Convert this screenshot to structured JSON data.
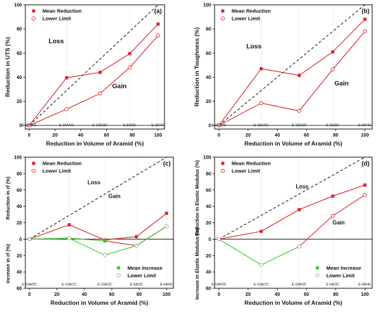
{
  "colors": {
    "mean": "#d9262b",
    "lower": "#d9262b",
    "increase": "#33cc33",
    "diagonal": "#111111",
    "axis": "#111111"
  },
  "chart_data": [
    {
      "panel": "(a)",
      "type": "line",
      "xlabel": "Reduction in Volume of Aramid (%)",
      "ylabel": "Reduction in UTS (%)",
      "xlim": [
        -3,
        105
      ],
      "ylim": [
        -3,
        100
      ],
      "x_ticks": [
        0,
        20,
        40,
        60,
        80,
        100
      ],
      "y_ticks": [
        0,
        20,
        40,
        60,
        80,
        100
      ],
      "categories": [
        "E-19A/0C",
        "E-15A/1C",
        "E-10A/2C",
        "E-5A/3C",
        "E-0A/4C"
      ],
      "x": [
        0,
        29,
        55,
        78,
        100
      ],
      "series": [
        {
          "name": "Mean Reduction",
          "style": "mean",
          "values": [
            0,
            39.5,
            44,
            59.5,
            84
          ]
        },
        {
          "name": "Lower Limit",
          "style": "lower",
          "values": [
            0,
            13.5,
            26.5,
            48,
            74.5
          ]
        }
      ],
      "diagonal": true,
      "legend": "top-left",
      "annotations": [
        {
          "text": "Loss",
          "x": 21,
          "y": 68,
          "size": "lg"
        },
        {
          "text": "Gain",
          "x": 70,
          "y": 31,
          "size": "lg"
        }
      ]
    },
    {
      "panel": "(b)",
      "type": "line",
      "xlabel": "Reduction in Volume of Aramid (%)",
      "ylabel": "Reduction in Toughness (%)",
      "xlim": [
        -3,
        105
      ],
      "ylim": [
        -3,
        100
      ],
      "x_ticks": [
        0,
        20,
        40,
        60,
        80,
        100
      ],
      "y_ticks": [
        0,
        20,
        40,
        60,
        80,
        100
      ],
      "categories": [
        "E-19A/0C",
        "E-15A/1C",
        "E-10A/2C",
        "E-5A/3C",
        "E-0A/4C"
      ],
      "x": [
        0,
        29,
        55,
        78,
        100
      ],
      "series": [
        {
          "name": "Mean Reduction",
          "style": "mean",
          "values": [
            0,
            47,
            41.5,
            61,
            88
          ]
        },
        {
          "name": "Lower Limit",
          "style": "lower",
          "values": [
            0,
            18.5,
            12,
            46.5,
            78
          ]
        }
      ],
      "diagonal": true,
      "legend": "top-left",
      "annotations": [
        {
          "text": "Loss",
          "x": 24,
          "y": 64,
          "size": "lg"
        },
        {
          "text": "Gain",
          "x": 84,
          "y": 33,
          "size": "lg"
        }
      ]
    },
    {
      "panel": "(c)",
      "type": "line",
      "xlabel": "Reduction in Volume of Aramid (%)",
      "ylabel_top": "Reduction in εf (%)",
      "ylabel_bottom": "Increase in εf (%)",
      "xlim": [
        -3,
        105
      ],
      "ylim": [
        -60,
        100
      ],
      "x_ticks": [
        0,
        20,
        40,
        60,
        80,
        100
      ],
      "y_ticks": [
        -60,
        -40,
        -20,
        0,
        20,
        40,
        60,
        80,
        100
      ],
      "y_tick_labels": [
        "60",
        "40",
        "20",
        "0",
        "20",
        "40",
        "60",
        "80",
        "100"
      ],
      "categories": [
        "E-19A/0C",
        "E-15A/1C",
        "E-10A/2C",
        "E-5A/3C",
        "E-0A/4C"
      ],
      "x": [
        0,
        29,
        55,
        78,
        100
      ],
      "series": [
        {
          "name": "Mean Reduction",
          "style": "mean",
          "values": [
            0,
            17.5,
            -1,
            3,
            31.5
          ]
        },
        {
          "name": "Lower Limit",
          "style": "lower",
          "values": [
            0,
            1,
            -2,
            -8,
            15.5
          ]
        },
        {
          "name": "Mean Increase",
          "style": "increase",
          "values": [
            0,
            1,
            -2,
            null,
            null
          ]
        },
        {
          "name": "Lower Limit",
          "style": "increase-lower",
          "values": [
            0,
            1,
            -19.5,
            -8,
            15.5
          ]
        }
      ],
      "diagonal": true,
      "legend": "top-left and bottom-right",
      "annotations": [
        {
          "text": "Loss",
          "x": 47,
          "y": 67,
          "size": "sm"
        },
        {
          "text": "Gain",
          "x": 62,
          "y": 50,
          "size": "sm"
        }
      ]
    },
    {
      "panel": "(d)",
      "type": "line",
      "xlabel": "Reduction in Volume of Aramid (%)",
      "ylabel_top": "Reduction in Elastic Modulus (%)",
      "ylabel_bottom": "Increase in Elastic Modulus (%)",
      "xlim": [
        -3,
        105
      ],
      "ylim": [
        -60,
        100
      ],
      "x_ticks": [
        0,
        20,
        40,
        60,
        80,
        100
      ],
      "y_ticks": [
        -60,
        -40,
        -20,
        0,
        20,
        40,
        60,
        80,
        100
      ],
      "y_tick_labels": [
        "60",
        "40",
        "20",
        "0",
        "20",
        "40",
        "60",
        "80",
        "100"
      ],
      "categories": [
        "E-19A/0C",
        "E-15A/1C",
        "E-10A/2C",
        "E-5A/3C",
        "E-0A/4C"
      ],
      "x": [
        0,
        29,
        55,
        78,
        100
      ],
      "series": [
        {
          "name": "Mean Reduction",
          "style": "mean",
          "values": [
            0,
            9.5,
            36,
            52.5,
            66
          ]
        },
        {
          "name": "Lower Limit",
          "style": "lower",
          "values": [
            0,
            null,
            -9,
            28.5,
            54
          ]
        },
        {
          "name": "Mean Increase",
          "style": "increase",
          "values": [
            0,
            null,
            null,
            null,
            null
          ]
        },
        {
          "name": "Lower Limit",
          "style": "increase-lower",
          "values": [
            0,
            -31.5,
            -9,
            null,
            null
          ]
        }
      ],
      "diagonal": true,
      "legend": "top-left and bottom-right",
      "annotations": [
        {
          "text": "Loss",
          "x": 57,
          "y": 62,
          "size": "sm"
        },
        {
          "text": "Gain",
          "x": 82,
          "y": 18,
          "size": "sm"
        }
      ]
    }
  ]
}
